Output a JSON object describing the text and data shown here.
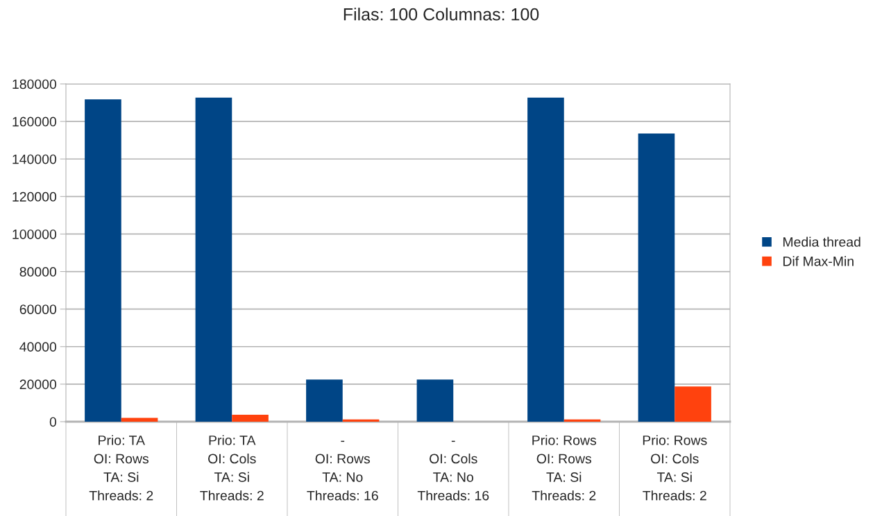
{
  "chart_data": {
    "type": "bar",
    "title": "Filas: 100 Columnas: 100",
    "categories": [
      "Prio: TA\nOI: Rows\nTA: Si\nThreads: 2",
      "Prio: TA\nOI: Cols\nTA: Si\nThreads: 2",
      "-\nOI: Rows\nTA: No\nThreads: 16",
      "-\nOI: Cols\nTA: No\nThreads: 16",
      "Prio: Rows\nOI: Rows\nTA: Si\nThreads: 2",
      "Prio: Rows\nOI: Cols\nTA: Si\nThreads: 2"
    ],
    "series": [
      {
        "name": "Media thread",
        "color": "#004586",
        "values": [
          171800,
          172700,
          22500,
          22500,
          172700,
          153600
        ]
      },
      {
        "name": "Dif Max-Min",
        "color": "#ff420e",
        "values": [
          2000,
          3700,
          1200,
          0,
          1200,
          18800
        ]
      }
    ],
    "ylim": [
      0,
      180000
    ],
    "yticks": [
      0,
      20000,
      40000,
      60000,
      80000,
      100000,
      120000,
      140000,
      160000,
      180000
    ],
    "grid": "y",
    "legend": "right"
  }
}
